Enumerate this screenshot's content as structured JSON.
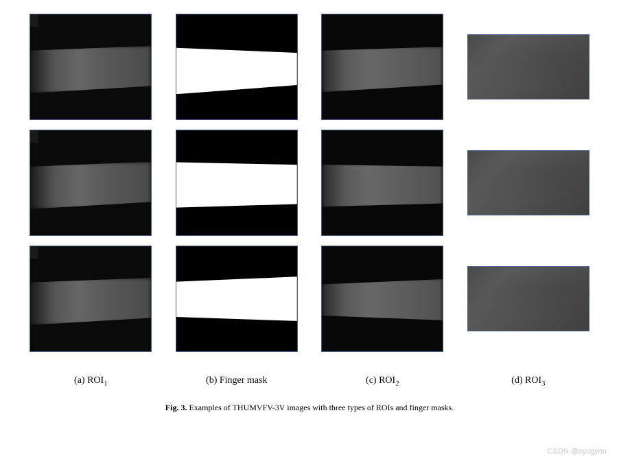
{
  "figure": {
    "grid_rows": 3,
    "grid_cols": 4,
    "panel_border_color": "#4a5f8a",
    "large_panel_width": 178,
    "large_panel_height": 155,
    "small_panel_width": 178,
    "small_panel_height": 95,
    "background_color": "#ffffff",
    "columns": [
      {
        "label_prefix": "(a) ROI",
        "label_sub": "1",
        "type": "roi1",
        "panel_size": "large",
        "description": "Dark NIR finger image with bright central band"
      },
      {
        "label_prefix": "(b) Finger mask",
        "label_sub": "",
        "type": "mask",
        "panel_size": "large",
        "description": "Binary mask: black background, white finger region"
      },
      {
        "label_prefix": "(c) ROI",
        "label_sub": "2",
        "type": "roi2",
        "panel_size": "large",
        "description": "Masked NIR finger image"
      },
      {
        "label_prefix": "(d) ROI",
        "label_sub": "3",
        "type": "roi3",
        "panel_size": "small",
        "description": "Cropped grayscale finger ROI"
      }
    ],
    "colors": {
      "roi_dark_bg": "#0a0a0a",
      "roi_band_light": "#666666",
      "roi_band_dark": "#1a1a1a",
      "mask_bg": "#000000",
      "mask_fg": "#ffffff",
      "roi3_gray": "#505050"
    }
  },
  "labels": {
    "a": "(a) ROI",
    "a_sub": "1",
    "b": "(b) Finger mask",
    "c": "(c) ROI",
    "c_sub": "2",
    "d": "(d) ROI",
    "d_sub": "3",
    "fontsize": 14,
    "color": "#000000"
  },
  "caption": {
    "prefix": "Fig. 3.",
    "text": "Examples of THUMVFV-3V images with three types of ROIs and finger masks.",
    "fontsize": 12,
    "color": "#000000"
  },
  "watermark": {
    "text": "CSDN @syugyou",
    "color": "#c8c8c8",
    "fontsize": 11
  }
}
